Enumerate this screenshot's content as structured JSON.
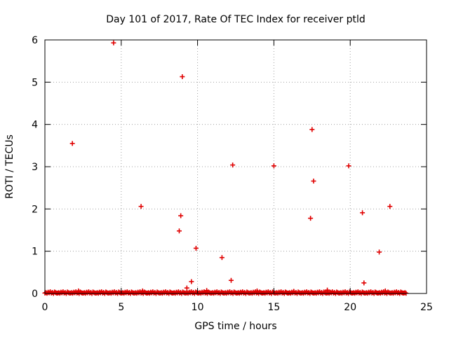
{
  "chart_data": {
    "type": "scatter",
    "title": "Day 101 of 2017, Rate Of TEC Index for receiver ptld",
    "xlabel": "GPS time / hours",
    "ylabel": "ROTI / TECUs",
    "xlim": [
      0,
      25
    ],
    "ylim": [
      0,
      6
    ],
    "xticks": [
      0,
      5,
      10,
      15,
      20,
      25
    ],
    "yticks": [
      0,
      1,
      2,
      3,
      4,
      5,
      6
    ],
    "grid": true,
    "legend": "none",
    "marker": "plus",
    "color": "#e00000",
    "series": [
      {
        "outliers": [
          [
            4.5,
            5.93
          ],
          [
            9.0,
            5.13
          ],
          [
            1.8,
            3.55
          ],
          [
            17.5,
            3.88
          ],
          [
            12.3,
            3.04
          ],
          [
            15.0,
            3.02
          ],
          [
            19.9,
            3.02
          ],
          [
            17.6,
            2.66
          ],
          [
            6.3,
            2.06
          ],
          [
            22.6,
            2.06
          ],
          [
            20.8,
            1.91
          ],
          [
            8.9,
            1.84
          ],
          [
            17.4,
            1.78
          ],
          [
            8.8,
            1.48
          ],
          [
            9.9,
            1.07
          ],
          [
            21.9,
            0.98
          ],
          [
            11.6,
            0.85
          ],
          [
            12.2,
            0.31
          ],
          [
            9.6,
            0.28
          ],
          [
            20.9,
            0.25
          ],
          [
            9.3,
            0.13
          ],
          [
            18.5,
            0.08
          ],
          [
            10.6,
            0.07
          ],
          [
            6.4,
            0.06
          ],
          [
            2.2,
            0.06
          ],
          [
            13.9,
            0.06
          ],
          [
            16.3,
            0.05
          ],
          [
            22.3,
            0.06
          ]
        ],
        "baseline": {
          "x_start": 0.0,
          "x_end": 23.7,
          "step": 0.07,
          "y_values": [
            0.01,
            0.02,
            0.005,
            0.03,
            0.015,
            0.04,
            0.01,
            0.025,
            0.0,
            0.035,
            0.02,
            0.01
          ]
        }
      }
    ]
  }
}
